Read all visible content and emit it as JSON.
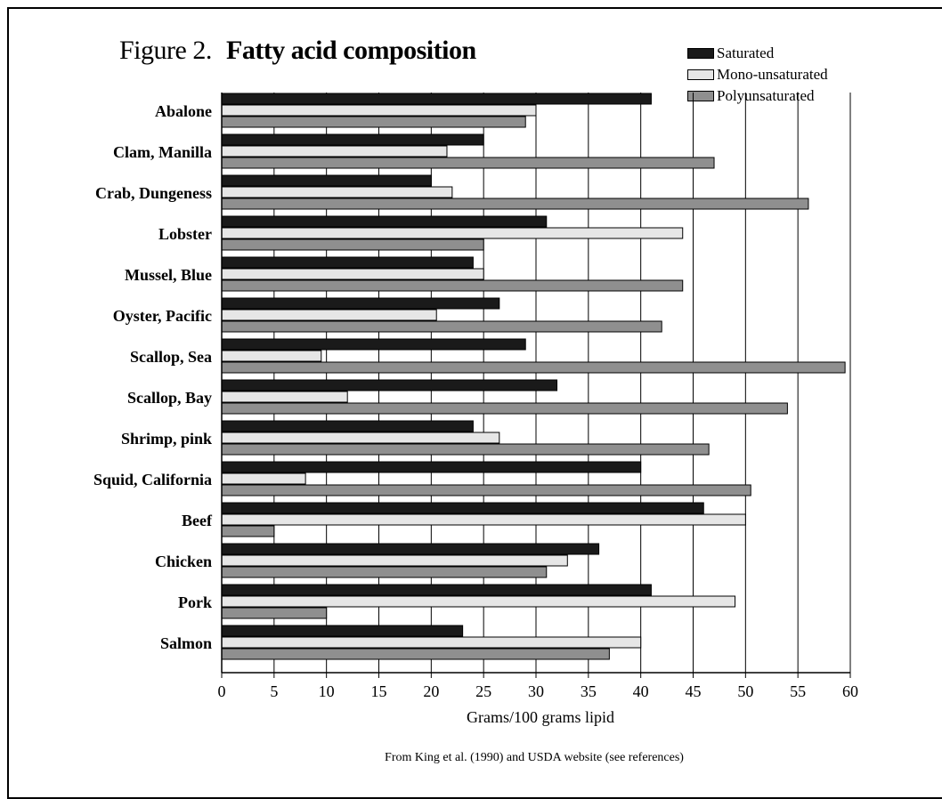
{
  "title": {
    "prefix": "Figure 2.",
    "main": "Fatty acid composition"
  },
  "source_note": "From King et al. (1990) and USDA website (see references)",
  "colors": {
    "saturated": "#1a1a1a",
    "mono_unsaturated": "#e6e6e6",
    "polyunsaturated": "#8f8f8f"
  },
  "chart_data": {
    "type": "bar",
    "orientation": "horizontal",
    "title": "Figure 2. Fatty acid composition",
    "xlabel": "Grams/100 grams lipid",
    "ylabel": "",
    "xlim": [
      0,
      60
    ],
    "xticks": [
      0,
      5,
      10,
      15,
      20,
      25,
      30,
      35,
      40,
      45,
      50,
      55,
      60
    ],
    "grid": "vertical lines at every 5",
    "legend_position": "top-right",
    "categories": [
      "Abalone",
      "Clam, Manilla",
      "Crab, Dungeness",
      "Lobster",
      "Mussel, Blue",
      "Oyster, Pacific",
      "Scallop, Sea",
      "Scallop, Bay",
      "Shrimp, pink",
      "Squid, California",
      "Beef",
      "Chicken",
      "Pork",
      "Salmon"
    ],
    "series": [
      {
        "name": "Saturated",
        "color": "#1a1a1a",
        "values": [
          41,
          25,
          20,
          31,
          24,
          26.5,
          29,
          32,
          24,
          40,
          46,
          36,
          41,
          23
        ]
      },
      {
        "name": "Mono-unsaturated",
        "color": "#e6e6e6",
        "values": [
          30,
          21.5,
          22,
          44,
          25,
          20.5,
          9.5,
          12,
          26.5,
          8,
          50,
          33,
          49,
          40
        ]
      },
      {
        "name": "Polyunsaturated",
        "color": "#8f8f8f",
        "values": [
          29,
          47,
          56,
          25,
          44,
          42,
          59.5,
          54,
          46.5,
          50.5,
          5,
          31,
          10,
          37
        ]
      }
    ]
  }
}
